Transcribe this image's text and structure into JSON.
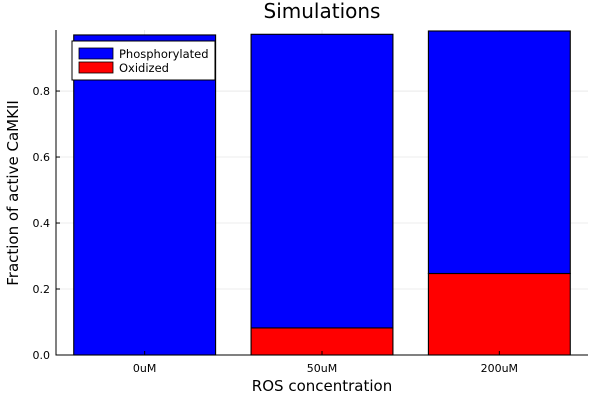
{
  "chart_data": {
    "type": "bar",
    "stacked": true,
    "title": "Simulations",
    "xlabel": "ROS concentration",
    "ylabel": "Fraction of active CaMKII",
    "categories": [
      "0uM",
      "50uM",
      "200uM"
    ],
    "series": [
      {
        "name": "Phosphorylated",
        "color": "#0000ff",
        "values": [
          0.97,
          0.89,
          0.735
        ]
      },
      {
        "name": "Oxidized",
        "color": "#ff0000",
        "values": [
          0.0,
          0.082,
          0.247
        ]
      }
    ],
    "ylim": [
      0,
      0.985
    ],
    "yticks": [
      0.0,
      0.2,
      0.4,
      0.6,
      0.8
    ],
    "ytick_labels": [
      "0.0",
      "0.2",
      "0.4",
      "0.6",
      "0.8"
    ],
    "grid": true,
    "legend_position": "top-left"
  }
}
